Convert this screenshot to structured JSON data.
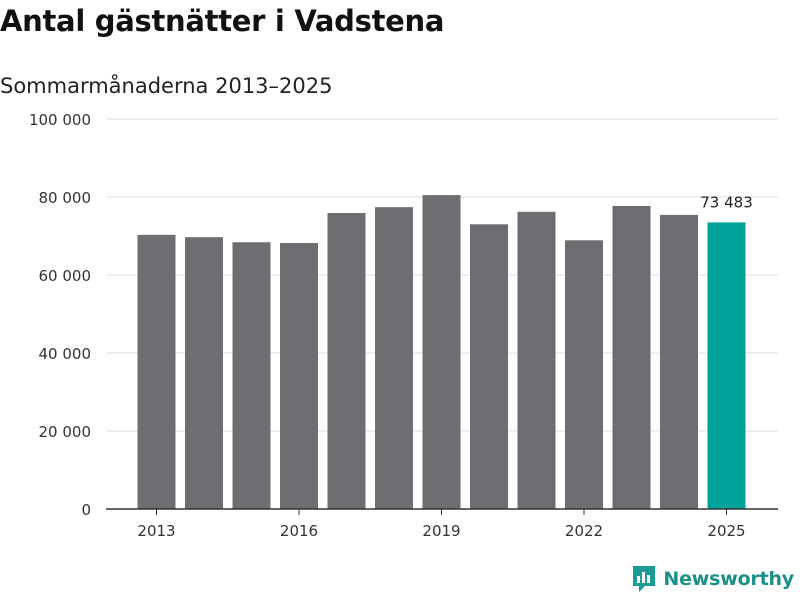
{
  "header": {
    "title": "Antal gästnätter i Vadstena",
    "subtitle": "Sommarmånaderna 2013–2025"
  },
  "brand": {
    "name": "Newsworthy",
    "icon": "newsworthy-logo-icon",
    "color": "#1c9a94"
  },
  "colors": {
    "bar": "#6e6d72",
    "highlight": "#00a39a",
    "grid": "#dedede",
    "axis": "#333333"
  },
  "chart_data": {
    "type": "bar",
    "title": "Antal gästnätter i Vadstena",
    "subtitle": "Sommarmånaderna 2013–2025",
    "categories": [
      "2013",
      "2014",
      "2015",
      "2016",
      "2017",
      "2018",
      "2019",
      "2020",
      "2021",
      "2022",
      "2023",
      "2024",
      "2025"
    ],
    "values": [
      70300,
      69700,
      68400,
      68200,
      75900,
      77400,
      80500,
      73000,
      76200,
      68900,
      77700,
      75400,
      73483
    ],
    "x_tick_labels": [
      "2013",
      "2016",
      "2019",
      "2022",
      "2025"
    ],
    "y_ticks": [
      0,
      20000,
      40000,
      60000,
      80000,
      100000
    ],
    "y_tick_labels": [
      "0",
      "20 000",
      "40 000",
      "60 000",
      "80 000",
      "100 000"
    ],
    "ylim": [
      0,
      100000
    ],
    "highlight_index": 12,
    "annotation": {
      "category": "2025",
      "label": "73 483"
    },
    "grid": true,
    "legend": false
  }
}
